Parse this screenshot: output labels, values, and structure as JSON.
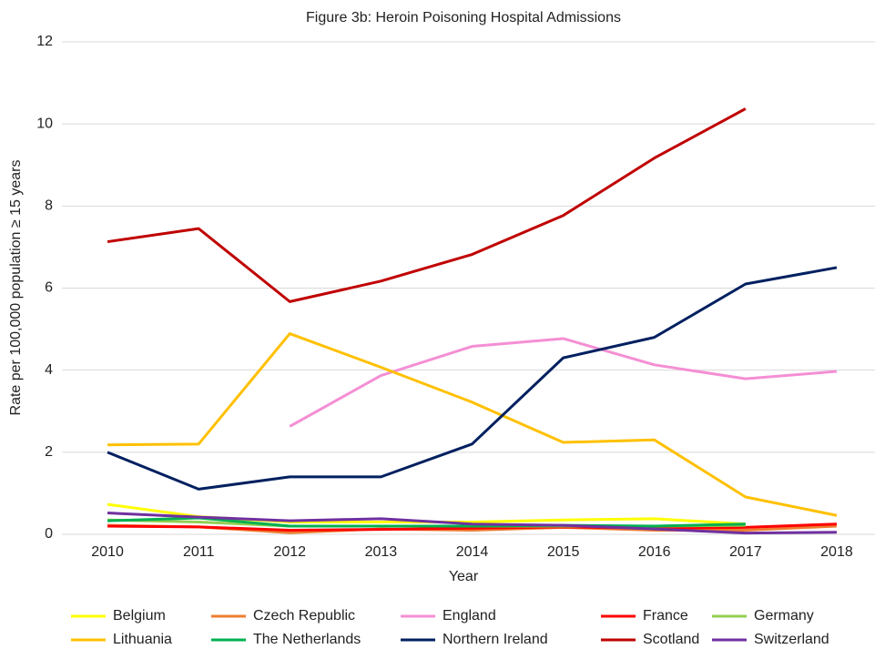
{
  "chart_data": {
    "type": "line",
    "title": "Figure 3b: Heroin Poisoning Hospital Admissions",
    "x_label": "Year",
    "y_label": "Rate per 100,000 population ≥ 15 years",
    "x": [
      2010,
      2011,
      2012,
      2013,
      2014,
      2015,
      2016,
      2017,
      2018
    ],
    "xlim": [
      2009.5,
      2018.5
    ],
    "xticks": [
      2010,
      2011,
      2012,
      2013,
      2014,
      2015,
      2016,
      2017,
      2018
    ],
    "ylim": [
      0,
      12
    ],
    "yticks": [
      0,
      2,
      4,
      6,
      8,
      10,
      12
    ],
    "grid": true,
    "legend": "bottom",
    "series": [
      {
        "name": "Belgium",
        "color": "#ffff00",
        "values": [
          0.73,
          0.43,
          0.3,
          0.3,
          0.3,
          0.35,
          0.38,
          0.25,
          null
        ]
      },
      {
        "name": "Czech Republic",
        "color": "#ed7d31",
        "values": [
          0.22,
          0.18,
          0.04,
          0.13,
          0.1,
          0.17,
          0.1,
          0.1,
          0.2
        ]
      },
      {
        "name": "England",
        "color": "#f48fd4",
        "values": [
          null,
          null,
          2.63,
          3.87,
          4.58,
          4.77,
          4.13,
          3.79,
          3.97
        ]
      },
      {
        "name": "France",
        "color": "#ff0000",
        "values": [
          0.2,
          0.18,
          0.1,
          0.12,
          0.15,
          0.18,
          0.15,
          0.17,
          0.25
        ]
      },
      {
        "name": "Germany",
        "color": "#92d050",
        "values": [
          0.35,
          0.3,
          0.2,
          0.2,
          0.2,
          0.2,
          0.2,
          0.22,
          null
        ]
      },
      {
        "name": "Lithuania",
        "color": "#ffc000",
        "values": [
          2.18,
          2.2,
          4.89,
          4.07,
          3.22,
          2.24,
          2.3,
          0.91,
          0.46
        ]
      },
      {
        "name": "The Netherlands",
        "color": "#00b050",
        "values": [
          0.33,
          0.4,
          0.2,
          0.2,
          0.2,
          0.22,
          0.2,
          0.25,
          null
        ]
      },
      {
        "name": "Northern Ireland",
        "color": "#002060",
        "values": [
          2.0,
          1.1,
          1.4,
          1.4,
          2.2,
          4.3,
          4.8,
          6.1,
          6.5
        ]
      },
      {
        "name": "Scotland",
        "color": "#c00000",
        "values": [
          7.13,
          7.45,
          5.67,
          6.17,
          6.82,
          7.77,
          9.17,
          10.37,
          null
        ]
      },
      {
        "name": "Switzerland",
        "color": "#7030a0",
        "values": [
          0.52,
          0.42,
          0.33,
          0.38,
          0.25,
          0.22,
          0.13,
          0.03,
          0.05
        ]
      }
    ]
  }
}
